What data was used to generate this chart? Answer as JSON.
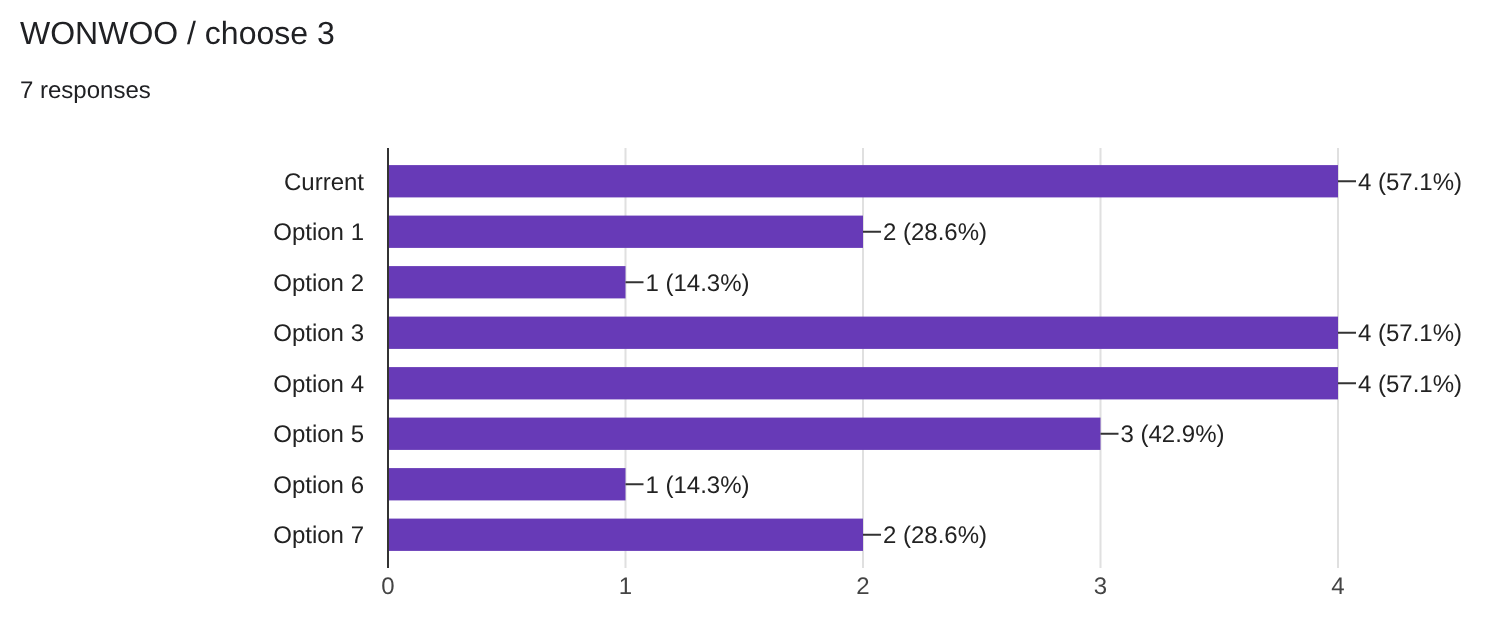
{
  "chart_data": {
    "type": "bar",
    "orientation": "horizontal",
    "title": "WONWOO / choose 3",
    "subtitle": "7 responses",
    "categories": [
      "Current",
      "Option 1",
      "Option 2",
      "Option 3",
      "Option 4",
      "Option 5",
      "Option 6",
      "Option 7"
    ],
    "values": [
      4,
      2,
      1,
      4,
      4,
      3,
      1,
      2
    ],
    "value_labels": [
      "4 (57.1%)",
      "2 (28.6%)",
      "1 (14.3%)",
      "4 (57.1%)",
      "4 (57.1%)",
      "3 (42.9%)",
      "1 (14.3%)",
      "2 (28.6%)"
    ],
    "color": "#673ab7",
    "xlim": [
      0,
      4
    ],
    "xticks": [
      0,
      1,
      2,
      3,
      4
    ],
    "grid": "x"
  }
}
